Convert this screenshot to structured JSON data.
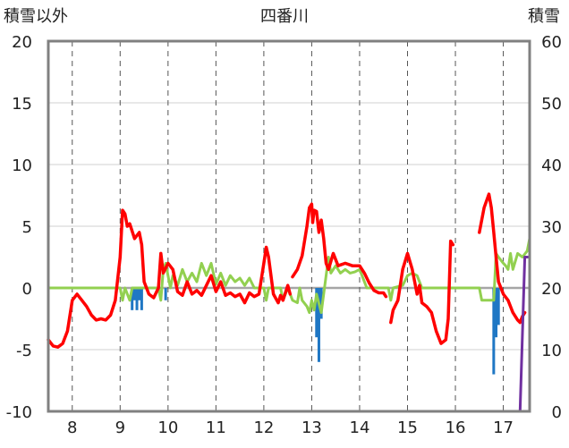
{
  "chart_data": {
    "type": "line",
    "title": "四番川",
    "left_axis_label": "積雪以外",
    "right_axis_label": "積雪",
    "x_ticks": [
      "8",
      "9",
      "10",
      "11",
      "12",
      "13",
      "14",
      "15",
      "16",
      "17"
    ],
    "xlim": [
      7.5,
      17.55
    ],
    "ylim_left": [
      -10,
      20
    ],
    "ylim_right": [
      0,
      60
    ],
    "left_ticks": [
      "-10",
      "-5",
      "0",
      "5",
      "10",
      "15",
      "20"
    ],
    "right_ticks": [
      "0",
      "10",
      "20",
      "30",
      "40",
      "50",
      "60"
    ],
    "grid": {
      "vertical": "dashed",
      "horizontal": "solid"
    },
    "colors": {
      "red": "#ff0000",
      "green": "#92d050",
      "blue": "#1f77c4",
      "purple": "#7030a0",
      "zero_line": "#a6a6a6",
      "frame": "#808080"
    },
    "series": [
      {
        "axis": "left",
        "color": "#ff0000",
        "segments": [
          [
            [
              7.5,
              -4.2
            ],
            [
              7.6,
              -4.7
            ],
            [
              7.7,
              -4.8
            ],
            [
              7.8,
              -4.5
            ],
            [
              7.9,
              -3.5
            ],
            [
              8.0,
              -1.0
            ],
            [
              8.1,
              -0.5
            ],
            [
              8.2,
              -1.0
            ],
            [
              8.3,
              -1.5
            ],
            [
              8.4,
              -2.2
            ],
            [
              8.5,
              -2.6
            ],
            [
              8.6,
              -2.5
            ],
            [
              8.7,
              -2.6
            ],
            [
              8.8,
              -2.2
            ],
            [
              8.9,
              -1.0
            ],
            [
              9.0,
              2.5
            ],
            [
              9.05,
              6.3
            ],
            [
              9.1,
              6.0
            ],
            [
              9.15,
              5.0
            ],
            [
              9.2,
              5.2
            ],
            [
              9.3,
              4.0
            ],
            [
              9.4,
              4.5
            ],
            [
              9.45,
              3.5
            ],
            [
              9.5,
              0.5
            ],
            [
              9.6,
              -0.5
            ],
            [
              9.7,
              -0.8
            ],
            [
              9.8,
              0.0
            ],
            [
              9.85,
              2.8
            ],
            [
              9.9,
              1.2
            ],
            [
              10.0,
              2.0
            ],
            [
              10.1,
              1.5
            ],
            [
              10.2,
              -0.3
            ],
            [
              10.3,
              -0.6
            ],
            [
              10.4,
              0.5
            ],
            [
              10.5,
              -0.5
            ],
            [
              10.6,
              -0.2
            ],
            [
              10.7,
              -0.6
            ],
            [
              10.8,
              0.2
            ],
            [
              10.9,
              1.0
            ],
            [
              11.0,
              -0.3
            ],
            [
              11.1,
              0.5
            ],
            [
              11.2,
              -0.6
            ],
            [
              11.3,
              -0.4
            ],
            [
              11.4,
              -0.7
            ],
            [
              11.5,
              -0.5
            ],
            [
              11.6,
              -1.2
            ],
            [
              11.7,
              -0.4
            ],
            [
              11.8,
              -0.7
            ],
            [
              11.9,
              -0.5
            ],
            [
              12.0,
              2.0
            ],
            [
              12.05,
              3.3
            ],
            [
              12.1,
              2.5
            ],
            [
              12.2,
              -0.5
            ],
            [
              12.3,
              -1.2
            ],
            [
              12.35,
              -0.6
            ],
            [
              12.4,
              -1.0
            ],
            [
              12.5,
              0.2
            ],
            [
              12.55,
              -0.5
            ]
          ],
          [
            [
              12.6,
              0.9
            ],
            [
              12.7,
              1.5
            ],
            [
              12.8,
              2.6
            ],
            [
              12.9,
              5.0
            ],
            [
              12.95,
              6.5
            ],
            [
              13.0,
              6.8
            ],
            [
              13.02,
              5.3
            ],
            [
              13.05,
              6.3
            ],
            [
              13.1,
              6.2
            ],
            [
              13.15,
              4.5
            ],
            [
              13.2,
              5.5
            ],
            [
              13.25,
              4.0
            ],
            [
              13.3,
              2.0
            ],
            [
              13.35,
              1.5
            ],
            [
              13.45,
              2.8
            ],
            [
              13.55,
              1.8
            ],
            [
              13.7,
              2.0
            ],
            [
              13.85,
              1.8
            ],
            [
              14.0,
              1.8
            ],
            [
              14.1,
              1.2
            ],
            [
              14.2,
              0.4
            ],
            [
              14.3,
              -0.2
            ],
            [
              14.4,
              -0.4
            ],
            [
              14.5,
              -0.4
            ],
            [
              14.55,
              -0.7
            ]
          ],
          [
            [
              14.65,
              -2.8
            ],
            [
              14.7,
              -1.8
            ],
            [
              14.8,
              -1.0
            ],
            [
              14.9,
              1.5
            ],
            [
              15.0,
              2.8
            ],
            [
              15.1,
              1.5
            ],
            [
              15.2,
              -0.5
            ],
            [
              15.25,
              0.2
            ],
            [
              15.3,
              -1.2
            ],
            [
              15.4,
              -1.5
            ],
            [
              15.5,
              -2.0
            ],
            [
              15.6,
              -3.5
            ],
            [
              15.7,
              -4.5
            ],
            [
              15.8,
              -4.2
            ],
            [
              15.85,
              -2.5
            ],
            [
              15.9,
              3.8
            ],
            [
              15.95,
              3.5
            ]
          ],
          [
            [
              16.5,
              4.5
            ],
            [
              16.6,
              6.5
            ],
            [
              16.7,
              7.6
            ],
            [
              16.75,
              6.5
            ],
            [
              16.8,
              4.5
            ],
            [
              16.85,
              2.5
            ],
            [
              16.9,
              0.5
            ],
            [
              17.0,
              -0.5
            ],
            [
              17.1,
              -1.0
            ],
            [
              17.2,
              -2.0
            ],
            [
              17.3,
              -2.6
            ],
            [
              17.35,
              -2.8
            ],
            [
              17.4,
              -2.3
            ],
            [
              17.45,
              -2.0
            ]
          ]
        ]
      },
      {
        "axis": "left",
        "color": "#92d050",
        "segments": [
          [
            [
              7.5,
              0
            ],
            [
              9.0,
              0
            ],
            [
              9.05,
              -1.0
            ],
            [
              9.1,
              0
            ],
            [
              9.2,
              -1.0
            ],
            [
              9.25,
              0
            ],
            [
              9.8,
              0
            ],
            [
              9.85,
              -1.0
            ],
            [
              9.9,
              1.5
            ],
            [
              9.95,
              2.0
            ],
            [
              10.0,
              1.0
            ],
            [
              10.05,
              0
            ],
            [
              10.1,
              1.0
            ],
            [
              10.2,
              0.2
            ],
            [
              10.3,
              1.5
            ],
            [
              10.4,
              0.5
            ],
            [
              10.5,
              1.2
            ],
            [
              10.6,
              0.5
            ],
            [
              10.7,
              2.0
            ],
            [
              10.8,
              1.0
            ],
            [
              10.9,
              2.0
            ],
            [
              11.0,
              0.3
            ],
            [
              11.1,
              1.2
            ],
            [
              11.2,
              0.2
            ],
            [
              11.3,
              1.0
            ],
            [
              11.4,
              0.5
            ],
            [
              11.5,
              0.8
            ],
            [
              11.6,
              0.2
            ],
            [
              11.7,
              0.8
            ],
            [
              11.8,
              0
            ],
            [
              12.0,
              0
            ],
            [
              12.05,
              -1.0
            ],
            [
              12.1,
              0
            ],
            [
              12.2,
              0
            ],
            [
              12.35,
              0
            ],
            [
              12.4,
              -1.0
            ],
            [
              12.5,
              0
            ],
            [
              12.6,
              -1.0
            ],
            [
              12.7,
              -1.2
            ],
            [
              12.75,
              0
            ],
            [
              12.8,
              -1.0
            ],
            [
              12.9,
              -1.5
            ],
            [
              12.95,
              -2.0
            ],
            [
              13.0,
              -1.0
            ],
            [
              13.05,
              -1.8
            ],
            [
              13.1,
              -0.5
            ],
            [
              13.2,
              -2.0
            ],
            [
              13.3,
              1.0
            ],
            [
              13.35,
              2.5
            ],
            [
              13.4,
              1.2
            ],
            [
              13.5,
              1.8
            ],
            [
              13.6,
              1.2
            ],
            [
              13.7,
              1.5
            ],
            [
              13.8,
              1.2
            ],
            [
              13.9,
              1.3
            ],
            [
              14.0,
              1.5
            ],
            [
              14.1,
              0.5
            ],
            [
              14.15,
              0
            ],
            [
              14.3,
              0
            ],
            [
              14.6,
              0
            ],
            [
              14.65,
              -1.0
            ],
            [
              14.7,
              0
            ],
            [
              14.9,
              0.2
            ],
            [
              15.0,
              1.0
            ],
            [
              15.1,
              1.2
            ],
            [
              15.2,
              1.0
            ],
            [
              15.3,
              0
            ],
            [
              16.5,
              0
            ],
            [
              16.55,
              -1.0
            ],
            [
              16.8,
              -1.0
            ],
            [
              16.85,
              2.8
            ],
            [
              16.9,
              2.5
            ],
            [
              17.0,
              2.0
            ],
            [
              17.05,
              1.8
            ],
            [
              17.1,
              1.5
            ],
            [
              17.15,
              2.8
            ],
            [
              17.2,
              1.5
            ],
            [
              17.3,
              2.8
            ],
            [
              17.4,
              2.5
            ],
            [
              17.5,
              3.0
            ],
            [
              17.55,
              4.0
            ]
          ]
        ]
      },
      {
        "axis": "left",
        "type": "bar",
        "color": "#1f77c4",
        "values": [
          [
            9.25,
            -1.8
          ],
          [
            9.3,
            -1.0
          ],
          [
            9.35,
            -1.8
          ],
          [
            9.4,
            -1.0
          ],
          [
            9.45,
            -1.8
          ],
          [
            9.95,
            -1.0
          ],
          [
            13.1,
            -4.0
          ],
          [
            13.15,
            -6.0
          ],
          [
            13.2,
            -2.5
          ],
          [
            16.8,
            -7.0
          ],
          [
            16.85,
            -4.0
          ],
          [
            16.9,
            -3.0
          ]
        ]
      },
      {
        "axis": "right",
        "color": "#7030a0",
        "segments": [
          [
            [
              7.5,
              0
            ],
            [
              17.35,
              0
            ],
            [
              17.45,
              25
            ],
            [
              17.55,
              25
            ]
          ]
        ]
      }
    ]
  }
}
